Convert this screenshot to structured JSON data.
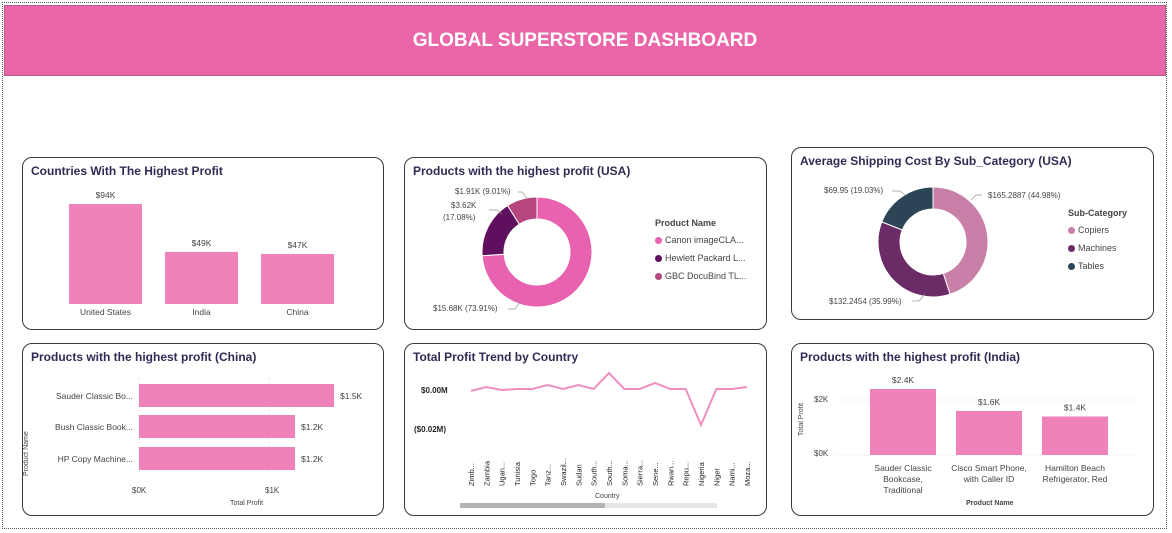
{
  "header": {
    "title": "GLOBAL SUPERSTORE DASHBOARD"
  },
  "colors": {
    "accent": "#ea66a8",
    "bar": "#ef82b9",
    "title": "#2f2c54"
  },
  "cards": {
    "countries": {
      "title": "Countries With The Highest Profit",
      "chart_data": {
        "type": "bar",
        "categories": [
          "United States",
          "India",
          "China"
        ],
        "values": [
          94,
          49,
          47
        ],
        "labels": [
          "$94K",
          "$49K",
          "$47K"
        ]
      }
    },
    "usa_products": {
      "title": "Products with the highest profit (USA)",
      "legend_title": "Product Name",
      "chart_data": {
        "type": "pie",
        "slices": [
          {
            "name": "Canon imageCLA...",
            "value": 15.68,
            "label": "$15.68K (73.91%)",
            "color": "#e862b0"
          },
          {
            "name": "Hewlett Packard L...",
            "value": 3.62,
            "label": "$3.62K (17.08%)",
            "color": "#5e0f5e"
          },
          {
            "name": "GBC DocuBind TL...",
            "value": 1.91,
            "label": "$1.91K (9.01%)",
            "color": "#b5467e"
          }
        ]
      },
      "label_lines": {
        "a": "$1.91K (9.01%)",
        "b1": "$3.62K",
        "b2": "(17.08%)",
        "c": "$15.68K (73.91%)"
      }
    },
    "shipping": {
      "title": "Average Shipping Cost By Sub_Category (USA)",
      "legend_title": "Sub-Category",
      "chart_data": {
        "type": "pie",
        "slices": [
          {
            "name": "Copiers",
            "value": 165.2887,
            "label": "$165.2887 (44.98%)",
            "color": "#c980a8"
          },
          {
            "name": "Machines",
            "value": 132.2454,
            "label": "$132.2454 (35.99%)",
            "color": "#6b2b66"
          },
          {
            "name": "Tables",
            "value": 69.95,
            "label": "$69.95 (19.03%)",
            "color": "#2c4556"
          }
        ]
      }
    },
    "china_products": {
      "title": "Products with the highest profit (China)",
      "ylabel": "Product Name",
      "xlabel": "Total Profit",
      "ticks": [
        "$0K",
        "$1K"
      ],
      "chart_data": {
        "type": "bar",
        "orientation": "horizontal",
        "categories": [
          "Sauder Classic Bo...",
          "Bush Classic Book...",
          "HP Copy Machine..."
        ],
        "values": [
          1.5,
          1.2,
          1.2
        ],
        "labels": [
          "$1.5K",
          "$1.2K",
          "$1.2K"
        ],
        "xlim": [
          0,
          1.5
        ]
      }
    },
    "trend": {
      "title": "Total Profit Trend by Country",
      "xlabel": "Country",
      "yticks": [
        "$0.00M",
        "($0.02M)"
      ],
      "chart_data": {
        "type": "line",
        "x": [
          "Zimb...",
          "Zambia",
          "Ugan...",
          "Tunisia",
          "Togo",
          "Tanz...",
          "Swazil...",
          "Sudan",
          "South...",
          "South...",
          "Soma...",
          "Sierra...",
          "Sene...",
          "Rwan...",
          "Repu...",
          "Nigeria",
          "Niger",
          "Nami...",
          "Moza..."
        ],
        "values": [
          -0.001,
          0.001,
          -0.0005,
          0.0,
          0.0,
          0.002,
          0.0,
          0.002,
          0.0,
          0.008,
          0.0,
          0.0,
          0.003,
          0.0,
          0.0,
          -0.018,
          0.0,
          0.0,
          0.001
        ]
      }
    },
    "india_products": {
      "title": "Products with the highest profit (India)",
      "ylabel": "Total Profit",
      "xlabel": "Product Name",
      "yticks": [
        "$2K",
        "$0K"
      ],
      "cat_lines": [
        [
          "Sauder Classic",
          "Bookcase,",
          "Traditional"
        ],
        [
          "Cisco Smart Phone,",
          "with Caller ID"
        ],
        [
          "Hamilton Beach",
          "Refrigerator, Red"
        ]
      ],
      "chart_data": {
        "type": "bar",
        "categories": [
          "Sauder Classic Bookcase, Traditional",
          "Cisco Smart Phone, with Caller ID",
          "Hamilton Beach Refrigerator, Red"
        ],
        "values": [
          2.4,
          1.6,
          1.4
        ],
        "labels": [
          "$2.4K",
          "$1.6K",
          "$1.4K"
        ]
      }
    }
  }
}
